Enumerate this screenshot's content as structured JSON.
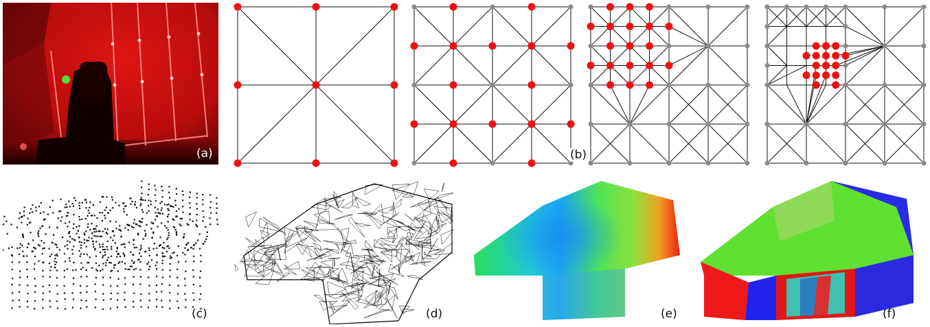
{
  "figure": {
    "panels": [
      {
        "id": "a",
        "label": "(a)"
      },
      {
        "id": "b",
        "label": "(b)"
      },
      {
        "id": "c",
        "label": "(c)"
      },
      {
        "id": "d",
        "label": "(d)"
      },
      {
        "id": "e",
        "label": "(e)"
      },
      {
        "id": "f",
        "label": "(f)"
      }
    ]
  },
  "colors": {
    "active_node": "#ee1111",
    "inactive_node": "#8a8a8a",
    "edge": "#111111",
    "laser_red": "#d81010"
  },
  "meshes": [
    {
      "id": "b1",
      "grid": 2,
      "edges": [
        [
          0,
          0,
          2,
          0
        ],
        [
          0,
          2,
          2,
          2
        ],
        [
          0,
          0,
          0,
          2
        ],
        [
          2,
          0,
          2,
          2
        ],
        [
          1,
          0,
          1,
          2
        ],
        [
          0,
          1,
          2,
          1
        ],
        [
          0,
          0,
          2,
          2
        ],
        [
          2,
          0,
          0,
          2
        ]
      ],
      "red": [
        [
          0,
          0
        ],
        [
          1,
          0
        ],
        [
          2,
          0
        ],
        [
          0,
          1
        ],
        [
          1,
          1
        ],
        [
          2,
          1
        ],
        [
          0,
          2
        ],
        [
          1,
          2
        ],
        [
          2,
          2
        ]
      ],
      "gray": []
    },
    {
      "id": "b2",
      "grid": 4,
      "edges": [
        [
          0,
          0,
          4,
          0
        ],
        [
          0,
          1,
          4,
          1
        ],
        [
          0,
          2,
          4,
          2
        ],
        [
          0,
          3,
          4,
          3
        ],
        [
          0,
          4,
          4,
          4
        ],
        [
          0,
          0,
          0,
          4
        ],
        [
          1,
          0,
          1,
          4
        ],
        [
          2,
          0,
          2,
          4
        ],
        [
          3,
          0,
          3,
          4
        ],
        [
          4,
          0,
          4,
          4
        ],
        [
          0,
          0,
          2,
          2
        ],
        [
          2,
          0,
          0,
          2
        ],
        [
          2,
          0,
          4,
          2
        ],
        [
          4,
          0,
          2,
          2
        ],
        [
          0,
          2,
          2,
          4
        ],
        [
          2,
          2,
          0,
          4
        ],
        [
          2,
          2,
          4,
          4
        ],
        [
          4,
          2,
          2,
          4
        ]
      ],
      "red": [
        [
          1,
          0
        ],
        [
          3,
          0
        ],
        [
          0,
          1
        ],
        [
          1,
          1
        ],
        [
          2,
          1
        ],
        [
          3,
          1
        ],
        [
          4,
          1
        ],
        [
          1,
          2
        ],
        [
          3,
          2
        ],
        [
          0,
          3
        ],
        [
          1,
          3
        ],
        [
          2,
          3
        ],
        [
          3,
          3
        ],
        [
          4,
          3
        ],
        [
          1,
          4
        ],
        [
          3,
          4
        ]
      ],
      "gray": [
        [
          0,
          0
        ],
        [
          2,
          0
        ],
        [
          4,
          0
        ],
        [
          0,
          2
        ],
        [
          2,
          2
        ],
        [
          4,
          2
        ],
        [
          0,
          4
        ],
        [
          2,
          4
        ],
        [
          4,
          4
        ]
      ]
    },
    {
      "id": "b3",
      "grid": 4,
      "edges": [
        [
          0,
          0,
          4,
          0
        ],
        [
          0,
          1,
          4,
          1
        ],
        [
          0,
          2,
          4,
          2
        ],
        [
          0,
          3,
          4,
          3
        ],
        [
          0,
          4,
          4,
          4
        ],
        [
          0,
          0,
          0,
          4
        ],
        [
          1,
          0,
          1,
          4
        ],
        [
          2,
          0,
          2,
          4
        ],
        [
          3,
          0,
          3,
          4
        ],
        [
          4,
          0,
          4,
          4
        ],
        [
          0,
          0.5,
          2,
          0.5
        ],
        [
          0,
          1.5,
          2,
          1.5
        ],
        [
          0.5,
          0,
          0.5,
          2
        ],
        [
          1.5,
          0,
          1.5,
          2
        ],
        [
          0,
          0,
          1,
          1
        ],
        [
          1,
          0,
          0,
          1
        ],
        [
          1,
          0,
          2,
          1
        ],
        [
          2,
          0,
          1,
          1
        ],
        [
          0,
          1,
          1,
          2
        ],
        [
          1,
          1,
          0,
          2
        ],
        [
          1,
          1,
          2,
          2
        ],
        [
          2,
          1,
          1,
          2
        ],
        [
          3,
          1,
          2,
          0
        ],
        [
          3,
          1,
          4,
          0
        ],
        [
          3,
          1,
          4,
          2
        ],
        [
          3,
          1,
          2,
          2
        ],
        [
          3,
          1,
          2,
          1
        ],
        [
          3,
          1,
          2,
          0.5
        ],
        [
          3,
          1,
          2,
          1.5
        ],
        [
          1,
          3,
          0,
          2
        ],
        [
          1,
          3,
          0.5,
          2
        ],
        [
          1,
          3,
          1.5,
          2
        ],
        [
          1,
          3,
          2,
          2
        ],
        [
          1,
          3,
          0,
          4
        ],
        [
          1,
          3,
          2,
          4
        ],
        [
          1,
          3,
          1,
          2
        ],
        [
          2,
          2,
          3,
          3
        ],
        [
          3,
          2,
          2,
          3
        ],
        [
          3,
          2,
          4,
          3
        ],
        [
          4,
          2,
          3,
          3
        ],
        [
          2,
          3,
          3,
          4
        ],
        [
          3,
          3,
          2,
          4
        ],
        [
          3,
          3,
          4,
          4
        ],
        [
          4,
          3,
          3,
          4
        ],
        [
          0,
          3,
          1,
          4
        ],
        [
          1,
          4,
          0,
          4
        ]
      ],
      "red": [
        [
          0,
          0.5
        ],
        [
          0,
          1.5
        ],
        [
          0.5,
          0
        ],
        [
          1,
          0
        ],
        [
          1.5,
          0
        ],
        [
          0.5,
          0.5
        ],
        [
          1,
          0.5
        ],
        [
          1.5,
          0.5
        ],
        [
          2,
          0.5
        ],
        [
          0.5,
          1
        ],
        [
          1,
          1
        ],
        [
          1.5,
          1
        ],
        [
          0.5,
          1.5
        ],
        [
          1,
          1.5
        ],
        [
          1.5,
          1.5
        ],
        [
          2,
          1.5
        ],
        [
          0.5,
          2
        ],
        [
          1.5,
          2
        ],
        [
          1,
          2
        ]
      ],
      "gray": [
        [
          0,
          0
        ],
        [
          2,
          0
        ],
        [
          3,
          0
        ],
        [
          4,
          0
        ],
        [
          0,
          1
        ],
        [
          2,
          1
        ],
        [
          3,
          1
        ],
        [
          4,
          1
        ],
        [
          0,
          2
        ],
        [
          2,
          2
        ],
        [
          3,
          2
        ],
        [
          4,
          2
        ],
        [
          0,
          3
        ],
        [
          1,
          3
        ],
        [
          2,
          3
        ],
        [
          3,
          3
        ],
        [
          4,
          3
        ],
        [
          0,
          4
        ],
        [
          1,
          4
        ],
        [
          2,
          4
        ],
        [
          3,
          4
        ],
        [
          4,
          4
        ]
      ]
    },
    {
      "id": "b4",
      "grid": 4,
      "edges": [
        [
          0,
          0,
          4,
          0
        ],
        [
          0,
          1,
          4,
          1
        ],
        [
          0,
          2,
          4,
          2
        ],
        [
          0,
          3,
          4,
          3
        ],
        [
          0,
          4,
          4,
          4
        ],
        [
          0,
          0,
          0,
          4
        ],
        [
          1,
          0,
          1,
          4
        ],
        [
          2,
          0,
          2,
          4
        ],
        [
          3,
          0,
          3,
          4
        ],
        [
          4,
          0,
          4,
          4
        ],
        [
          0,
          0.5,
          2,
          0.5
        ],
        [
          0,
          1.5,
          2,
          1.5
        ],
        [
          0.5,
          0,
          0.5,
          2
        ],
        [
          1.5,
          0,
          1.5,
          2
        ],
        [
          3,
          1,
          2,
          0
        ],
        [
          3,
          1,
          4,
          0
        ],
        [
          3,
          1,
          4,
          2
        ],
        [
          3,
          1,
          2,
          2
        ],
        [
          3,
          1,
          2,
          1
        ],
        [
          3,
          1,
          2,
          0.5
        ],
        [
          3,
          1,
          2,
          1.5
        ],
        [
          3,
          1,
          1.75,
          1.25
        ],
        [
          3,
          1,
          1.75,
          1.5
        ],
        [
          3,
          1,
          2,
          1.25
        ],
        [
          1,
          3,
          0,
          2
        ],
        [
          1,
          3,
          0.5,
          2
        ],
        [
          1,
          3,
          1.5,
          2
        ],
        [
          1,
          3,
          2,
          2
        ],
        [
          1,
          3,
          0,
          4
        ],
        [
          1,
          3,
          2,
          4
        ],
        [
          1,
          3,
          1.25,
          1.75
        ],
        [
          1,
          3,
          1.5,
          1.75
        ],
        [
          1,
          3,
          1,
          1.5
        ],
        [
          1,
          3,
          1.25,
          1.5
        ],
        [
          0,
          0,
          0.5,
          0.5
        ],
        [
          0.5,
          0,
          0,
          0.5
        ],
        [
          1,
          0,
          0.5,
          0.5
        ],
        [
          0.5,
          0,
          1,
          0.5
        ],
        [
          1,
          0,
          1.5,
          0.5
        ],
        [
          1.5,
          0,
          1,
          0.5
        ],
        [
          2,
          0,
          1.5,
          0.5
        ],
        [
          1.5,
          0,
          2,
          0.5
        ],
        [
          0,
          1,
          0.5,
          0.5
        ],
        [
          0,
          1,
          0.5,
          1.5
        ],
        [
          0,
          2,
          0.5,
          1.5
        ],
        [
          0,
          2,
          1,
          1.5
        ],
        [
          2,
          2,
          3,
          3
        ],
        [
          3,
          2,
          2,
          3
        ],
        [
          3,
          2,
          4,
          3
        ],
        [
          4,
          2,
          3,
          3
        ],
        [
          2,
          3,
          3,
          4
        ],
        [
          3,
          3,
          2,
          4
        ],
        [
          3,
          3,
          4,
          4
        ],
        [
          4,
          3,
          3,
          4
        ],
        [
          0,
          3,
          1,
          4
        ],
        [
          1,
          4,
          0,
          4
        ]
      ],
      "red": [
        [
          1.25,
          1
        ],
        [
          1.5,
          1
        ],
        [
          1.75,
          1
        ],
        [
          1,
          1.25
        ],
        [
          1.25,
          1.25
        ],
        [
          1.5,
          1.25
        ],
        [
          1.75,
          1.25
        ],
        [
          2,
          1.25
        ],
        [
          1.25,
          1.5
        ],
        [
          1.5,
          1.5
        ],
        [
          1.75,
          1.5
        ],
        [
          1,
          1.75
        ],
        [
          1.25,
          1.75
        ],
        [
          1.5,
          1.75
        ],
        [
          1.75,
          1.75
        ],
        [
          1.25,
          2
        ],
        [
          1.75,
          2
        ]
      ],
      "gray": [
        [
          0,
          0
        ],
        [
          0.5,
          0
        ],
        [
          1,
          0
        ],
        [
          1.5,
          0
        ],
        [
          2,
          0
        ],
        [
          3,
          0
        ],
        [
          4,
          0
        ],
        [
          0,
          0.5
        ],
        [
          2,
          0.5
        ],
        [
          0,
          1
        ],
        [
          2,
          1
        ],
        [
          3,
          1
        ],
        [
          4,
          1
        ],
        [
          0,
          1.5
        ],
        [
          2,
          1.5
        ],
        [
          0,
          2
        ],
        [
          2,
          2
        ],
        [
          3,
          2
        ],
        [
          4,
          2
        ],
        [
          0,
          3
        ],
        [
          1,
          3
        ],
        [
          2,
          3
        ],
        [
          3,
          3
        ],
        [
          4,
          3
        ],
        [
          0,
          4
        ],
        [
          1,
          4
        ],
        [
          2,
          4
        ],
        [
          3,
          4
        ],
        [
          4,
          4
        ]
      ]
    }
  ]
}
